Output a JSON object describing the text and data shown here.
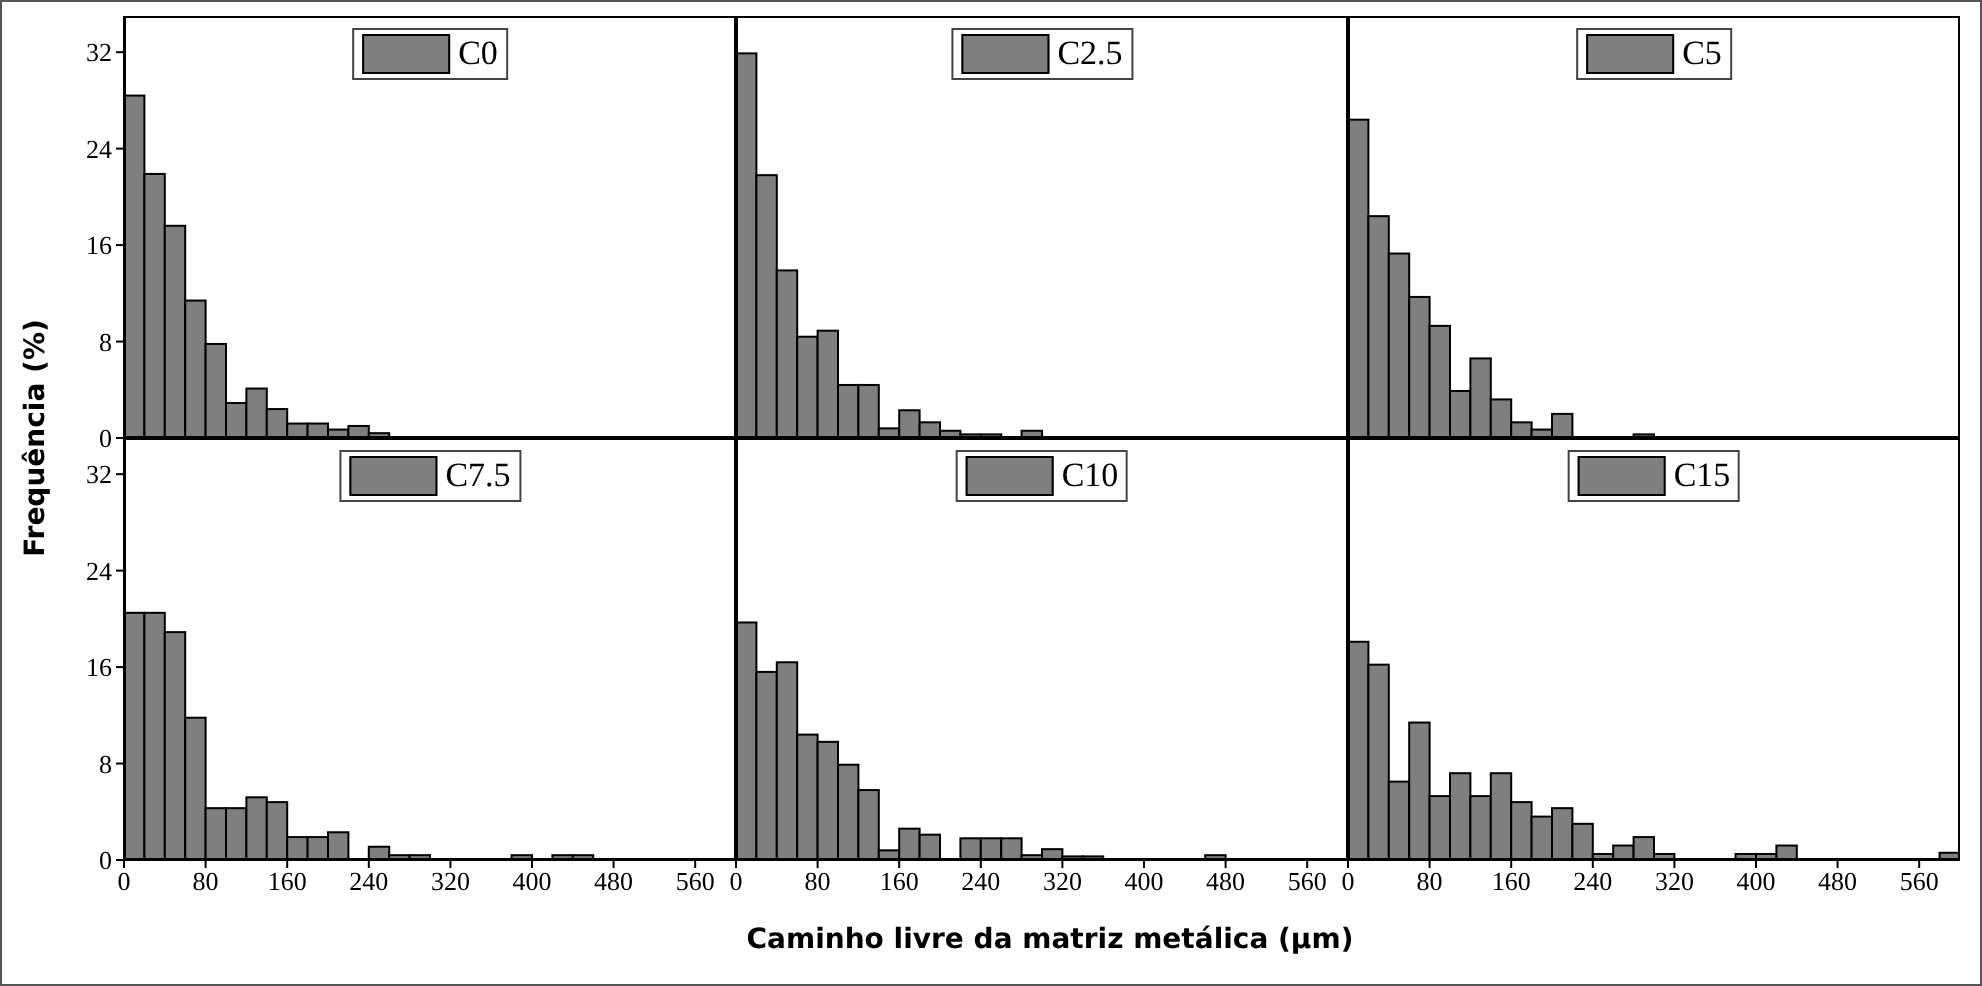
{
  "chart_data": [
    {
      "type": "histogram",
      "ylabel": "Frequência (%)",
      "bins": [
        0,
        20,
        40,
        60,
        80,
        100,
        120,
        140,
        160,
        180,
        200,
        220,
        240,
        260
      ],
      "series": [
        {
          "name": "C0",
          "color": "#7f7f7f",
          "values": [
            28.4,
            21.9,
            17.6,
            11.4,
            7.8,
            2.9,
            4.1,
            2.4,
            1.2,
            1.2,
            0.7,
            1.0,
            0.4
          ]
        }
      ],
      "xlim": [
        0,
        600
      ],
      "xticks": [
        0,
        80,
        160,
        240,
        320,
        400,
        480,
        560
      ],
      "ylim": [
        0,
        35
      ],
      "yticks": [
        0,
        8,
        16,
        24,
        32
      ],
      "legend": "top",
      "tick_labels": "y"
    },
    {
      "type": "histogram",
      "bins": [
        0,
        20,
        40,
        60,
        80,
        100,
        120,
        140,
        160,
        180,
        200,
        220,
        240,
        260,
        280,
        300
      ],
      "series": [
        {
          "name": "C2.5",
          "color": "#7f7f7f",
          "values": [
            31.9,
            21.8,
            13.9,
            8.4,
            8.9,
            4.4,
            4.4,
            0.8,
            2.3,
            1.3,
            0.6,
            0.3,
            0.3,
            0,
            0.6
          ]
        }
      ],
      "xlim": [
        0,
        600
      ],
      "xticks": [
        0,
        80,
        160,
        240,
        320,
        400,
        480,
        560
      ],
      "ylim": [
        0,
        35
      ],
      "yticks": [
        0,
        8,
        16,
        24,
        32
      ],
      "legend": "top",
      "tick_labels": false
    },
    {
      "type": "histogram",
      "bins": [
        0,
        20,
        40,
        60,
        80,
        100,
        120,
        140,
        160,
        180,
        200,
        220,
        240,
        260,
        280,
        300
      ],
      "series": [
        {
          "name": "C5",
          "color": "#7f7f7f",
          "values": [
            26.4,
            18.4,
            15.3,
            11.7,
            9.3,
            3.9,
            6.6,
            3.2,
            1.3,
            0.7,
            2.0,
            0,
            0,
            0,
            0.3
          ]
        }
      ],
      "xlim": [
        0,
        600
      ],
      "xticks": [
        0,
        80,
        160,
        240,
        320,
        400,
        480,
        560
      ],
      "ylim": [
        0,
        35
      ],
      "yticks": [
        0,
        8,
        16,
        24,
        32
      ],
      "legend": "top",
      "tick_labels": false
    },
    {
      "type": "histogram",
      "bins": [
        0,
        20,
        40,
        60,
        80,
        100,
        120,
        140,
        160,
        180,
        200,
        220,
        240,
        260,
        280,
        300,
        320,
        340,
        360,
        380,
        400,
        420,
        440,
        460
      ],
      "series": [
        {
          "name": "C7.5",
          "color": "#7f7f7f",
          "values": [
            20.5,
            20.5,
            18.9,
            11.8,
            4.3,
            4.3,
            5.2,
            4.8,
            1.9,
            1.9,
            2.3,
            0,
            1.1,
            0.4,
            0.4,
            0,
            0,
            0,
            0,
            0.4,
            0,
            0.4,
            0.4
          ]
        }
      ],
      "xlim": [
        0,
        600
      ],
      "xticks": [
        0,
        80,
        160,
        240,
        320,
        400,
        480,
        560
      ],
      "ylim": [
        0,
        35
      ],
      "yticks": [
        0,
        8,
        16,
        24,
        32
      ],
      "legend": "top"
    },
    {
      "type": "histogram",
      "xlabel": "Caminho livre da matriz metálica (μm)",
      "bins": [
        0,
        20,
        40,
        60,
        80,
        100,
        120,
        140,
        160,
        180,
        200,
        220,
        240,
        260,
        280,
        300,
        320,
        340,
        360,
        380,
        400,
        420,
        440,
        460,
        480
      ],
      "series": [
        {
          "name": "C10",
          "color": "#7f7f7f",
          "values": [
            19.7,
            15.6,
            16.4,
            10.4,
            9.8,
            7.9,
            5.8,
            0.8,
            2.6,
            2.1,
            0,
            1.8,
            1.8,
            1.8,
            0.4,
            0.9,
            0.3,
            0.3,
            0,
            0,
            0,
            0,
            0,
            0.4
          ]
        }
      ],
      "xlim": [
        0,
        600
      ],
      "xticks": [
        0,
        80,
        160,
        240,
        320,
        400,
        480,
        560
      ],
      "ylim": [
        0,
        35
      ],
      "yticks": [
        0,
        8,
        16,
        24,
        32
      ],
      "legend": "top",
      "tick_labels": "x"
    },
    {
      "type": "histogram",
      "bins": [
        0,
        20,
        40,
        60,
        80,
        100,
        120,
        140,
        160,
        180,
        200,
        220,
        240,
        260,
        280,
        300,
        320,
        340,
        360,
        380,
        400,
        420,
        440,
        460,
        480,
        500,
        520,
        540,
        560,
        580,
        600
      ],
      "series": [
        {
          "name": "C15",
          "color": "#7f7f7f",
          "values": [
            18.1,
            16.2,
            6.5,
            11.4,
            5.3,
            7.2,
            5.3,
            7.2,
            4.8,
            3.6,
            4.3,
            3.0,
            0.5,
            1.2,
            1.9,
            0.5,
            0,
            0,
            0,
            0.5,
            0.5,
            1.2,
            0,
            0,
            0,
            0,
            0,
            0,
            0,
            0.6
          ]
        }
      ],
      "xlim": [
        0,
        600
      ],
      "xticks": [
        0,
        80,
        160,
        240,
        320,
        400,
        480,
        560
      ],
      "ylim": [
        0,
        35
      ],
      "yticks": [
        0,
        8,
        16,
        24,
        32
      ],
      "legend": "top",
      "tick_labels": "x"
    }
  ]
}
